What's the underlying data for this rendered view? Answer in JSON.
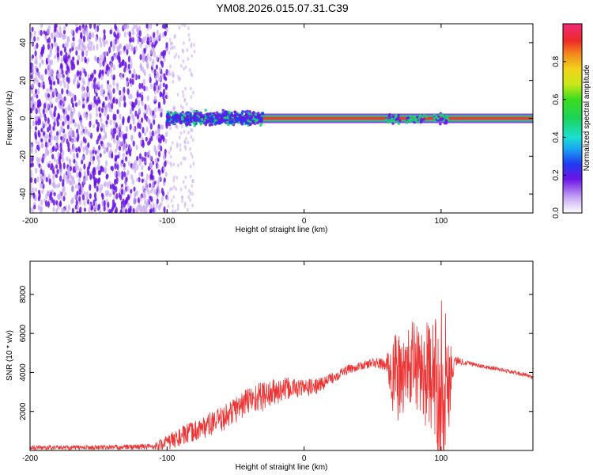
{
  "title": "YM08.2026.015.07.31.C39",
  "colors": {
    "snr_line": "#ee3333",
    "spectro_low": "#c8a8f4",
    "spectro_mid": "#6a14e6",
    "spectro_core": "#e83a3a",
    "spectro_halo": "#1bd37a"
  },
  "chart_data": [
    {
      "type": "heatmap",
      "title": "",
      "xlabel": "Height of straight line (km)",
      "ylabel": "Frequency (Hz)",
      "xlim": [
        -200,
        167
      ],
      "ylim": [
        -50,
        50
      ],
      "xticks": [
        -200,
        -100,
        0,
        100
      ],
      "xtick_labels": [
        "-200",
        "-100",
        "0",
        "100"
      ],
      "yticks": [
        -40,
        -20,
        0,
        20,
        40
      ],
      "ytick_labels": [
        "-40",
        "-20",
        "0",
        "20",
        "40"
      ],
      "colorbar": {
        "label": "Normalized spectral amplitude",
        "range": [
          0,
          1
        ],
        "ticks": [
          0.0,
          0.2,
          0.4,
          0.6,
          0.8
        ],
        "tick_labels": [
          "0.0",
          "0.2",
          "0.4",
          "0.6",
          "0.8"
        ]
      },
      "regions": [
        {
          "x": [
            -200,
            -100
          ],
          "freq": [
            -50,
            50
          ],
          "amplitude": 0.2
        },
        {
          "x": [
            -100,
            -30
          ],
          "freq": [
            -8,
            6
          ],
          "amplitude": 0.4
        },
        {
          "x": [
            -30,
            167
          ],
          "freq": [
            -1,
            1
          ],
          "amplitude": 0.95
        }
      ],
      "grid": false
    },
    {
      "type": "line",
      "title": "",
      "xlabel": "Height of straight line (km)",
      "ylabel": "SNR (10 * v/v)",
      "xlim": [
        -200,
        167
      ],
      "ylim": [
        0,
        9700
      ],
      "xticks": [
        -200,
        -100,
        0,
        100
      ],
      "xtick_labels": [
        "-200",
        "-100",
        "0",
        "100"
      ],
      "yticks": [
        2000,
        4000,
        6000,
        8000
      ],
      "ytick_labels": [
        "2000",
        "4000",
        "6000",
        "8000"
      ],
      "grid": false,
      "series": [
        {
          "x": [
            -200,
            -150,
            -110,
            -100,
            -90,
            -80,
            -70,
            -60,
            -50,
            -40,
            -30,
            -20,
            -10,
            0,
            10,
            20,
            30,
            40,
            50,
            60,
            65,
            70,
            75,
            80,
            85,
            90,
            95,
            100,
            105,
            110,
            120,
            130,
            140,
            150,
            160,
            167
          ],
          "y": [
            150,
            150,
            200,
            400,
            700,
            1000,
            1300,
            1600,
            2100,
            2600,
            2800,
            3000,
            3200,
            3200,
            3300,
            3700,
            4100,
            4300,
            4500,
            4400,
            4000,
            3600,
            4200,
            4500,
            4100,
            3800,
            3600,
            3500,
            3600,
            4600,
            4500,
            4300,
            4200,
            4050,
            3900,
            3750
          ],
          "noise": [
            120,
            120,
            150,
            400,
            500,
            550,
            600,
            650,
            700,
            750,
            800,
            700,
            550,
            450,
            400,
            300,
            250,
            200,
            250,
            350,
            2500,
            2200,
            1800,
            2500,
            2200,
            2800,
            3000,
            5000,
            3000,
            250,
            120,
            100,
            100,
            100,
            100,
            100
          ]
        }
      ]
    }
  ]
}
